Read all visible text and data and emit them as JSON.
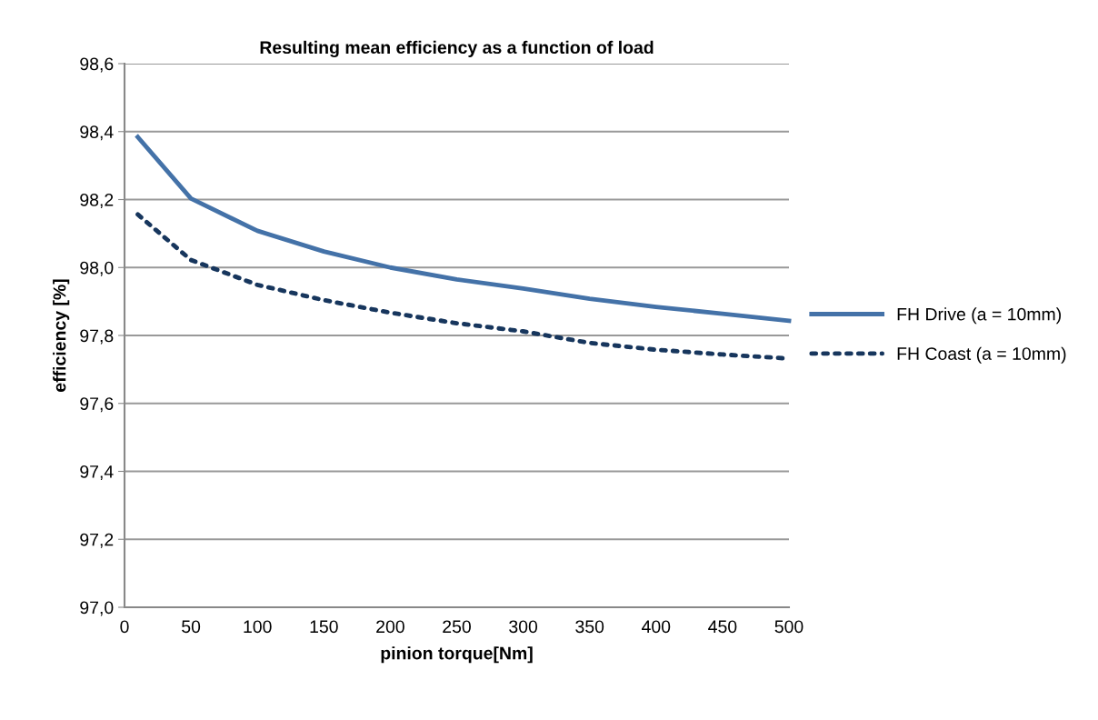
{
  "chart_data": {
    "type": "line",
    "title": "Resulting mean efficiency as a function of load",
    "xlabel": "pinion torque[Nm]",
    "ylabel": "efficiency [%]",
    "x": [
      10,
      50,
      100,
      150,
      200,
      250,
      300,
      350,
      400,
      450,
      500
    ],
    "series": [
      {
        "name": "FH Drive (a = 10mm)",
        "color": "#4472a8",
        "line_style": "solid",
        "values": [
          98.384,
          98.203,
          98.108,
          98.047,
          98.0,
          97.965,
          97.938,
          97.908,
          97.884,
          97.864,
          97.843
        ]
      },
      {
        "name": "FH Coast (a = 10mm)",
        "color": "#17365d",
        "line_style": "dotted",
        "values": [
          98.156,
          98.022,
          97.949,
          97.904,
          97.867,
          97.836,
          97.812,
          97.778,
          97.758,
          97.744,
          97.732
        ]
      }
    ],
    "xlim": [
      0,
      500
    ],
    "xticks": [
      0,
      50,
      100,
      150,
      200,
      250,
      300,
      350,
      400,
      450,
      500
    ],
    "ylim": [
      97.0,
      98.6
    ],
    "yticks": [
      {
        "value": 97.0,
        "label": "97,0"
      },
      {
        "value": 97.2,
        "label": "97,2"
      },
      {
        "value": 97.4,
        "label": "97,4"
      },
      {
        "value": 97.6,
        "label": "97,6"
      },
      {
        "value": 97.8,
        "label": "97,8"
      },
      {
        "value": 98.0,
        "label": "98,0"
      },
      {
        "value": 98.2,
        "label": "98,2"
      },
      {
        "value": 98.4,
        "label": "98,4"
      },
      {
        "value": 98.6,
        "label": "98,6"
      }
    ],
    "grid": "y",
    "legend": "right",
    "marker": "none"
  }
}
